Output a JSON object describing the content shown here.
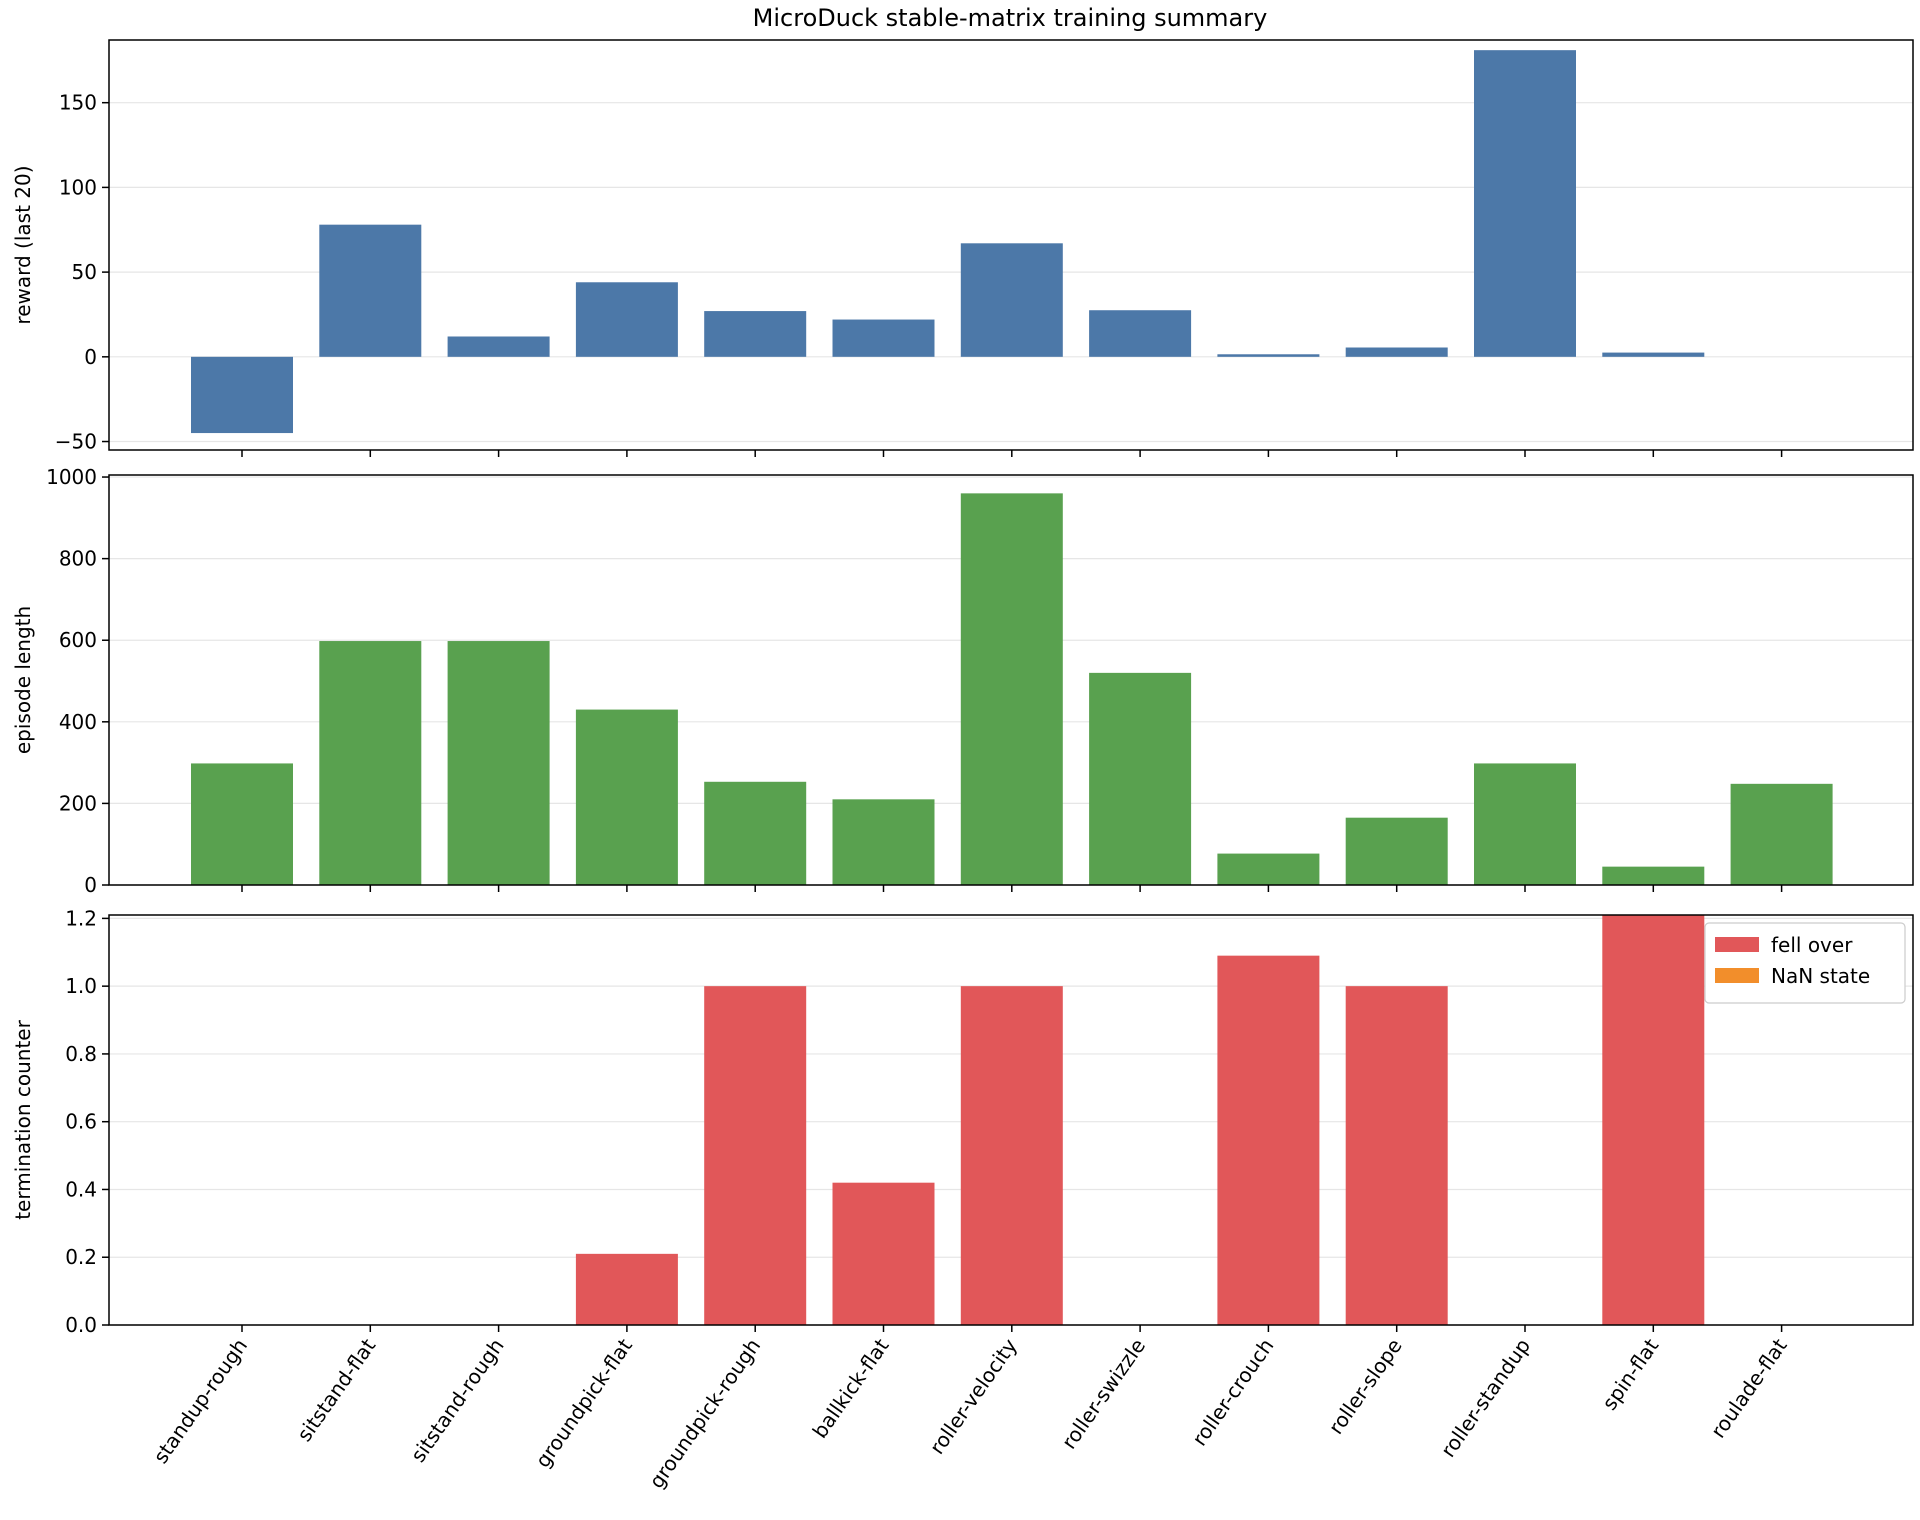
{
  "chart_data": {
    "title": "MicroDuck stable-matrix training summary",
    "categories": [
      "standup-rough",
      "sitstand-flat",
      "sitstand-rough",
      "groundpick-flat",
      "groundpick-rough",
      "ballkick-flat",
      "roller-velocity",
      "roller-swizzle",
      "roller-crouch",
      "roller-slope",
      "roller-standup",
      "spin-flat",
      "roulade-flat"
    ],
    "panels": [
      {
        "type": "bar",
        "ylabel": "reward (last 20)",
        "ylim": [
          -55,
          187
        ],
        "yticks": [
          -50,
          0,
          50,
          100,
          150
        ],
        "ytick_labels": [
          "−50",
          "0",
          "50",
          "100",
          "150"
        ],
        "grid": true,
        "series": [
          {
            "color": "#4c78a8",
            "values": [
              -45,
              78,
              12,
              44,
              27,
              22,
              67,
              27.5,
              1.5,
              5.5,
              181,
              2.5,
              null
            ]
          }
        ]
      },
      {
        "type": "bar",
        "ylabel": "episode length",
        "ylim": [
          0,
          1005
        ],
        "yticks": [
          0,
          200,
          400,
          600,
          800,
          1000
        ],
        "ytick_labels": [
          "0",
          "200",
          "400",
          "600",
          "800",
          "1000"
        ],
        "grid": true,
        "series": [
          {
            "color": "#59a14f",
            "values": [
              298,
              598,
              598,
              430,
              253,
              210,
              960,
              520,
              77,
              165,
              298,
              45,
              248
            ]
          }
        ]
      },
      {
        "type": "bar",
        "ylabel": "termination counter",
        "ylim": [
          0,
          1.21
        ],
        "yticks": [
          0,
          0.2,
          0.4,
          0.6,
          0.8,
          1.0,
          1.2
        ],
        "ytick_labels": [
          "0.0",
          "0.2",
          "0.4",
          "0.6",
          "0.8",
          "1.0",
          "1.2"
        ],
        "grid": true,
        "legend_position": "top-right",
        "series": [
          {
            "name": "fell over",
            "color": "#e15759",
            "values": [
              0,
              0,
              0,
              0.21,
              1.0,
              0.42,
              1.0,
              0,
              1.09,
              1.0,
              0,
              1.21,
              0
            ]
          },
          {
            "name": "NaN state",
            "color": "#f28e2b",
            "values": [
              0,
              0,
              0,
              0,
              0,
              0,
              0,
              0,
              0,
              0,
              0,
              0,
              0
            ]
          }
        ]
      }
    ]
  }
}
